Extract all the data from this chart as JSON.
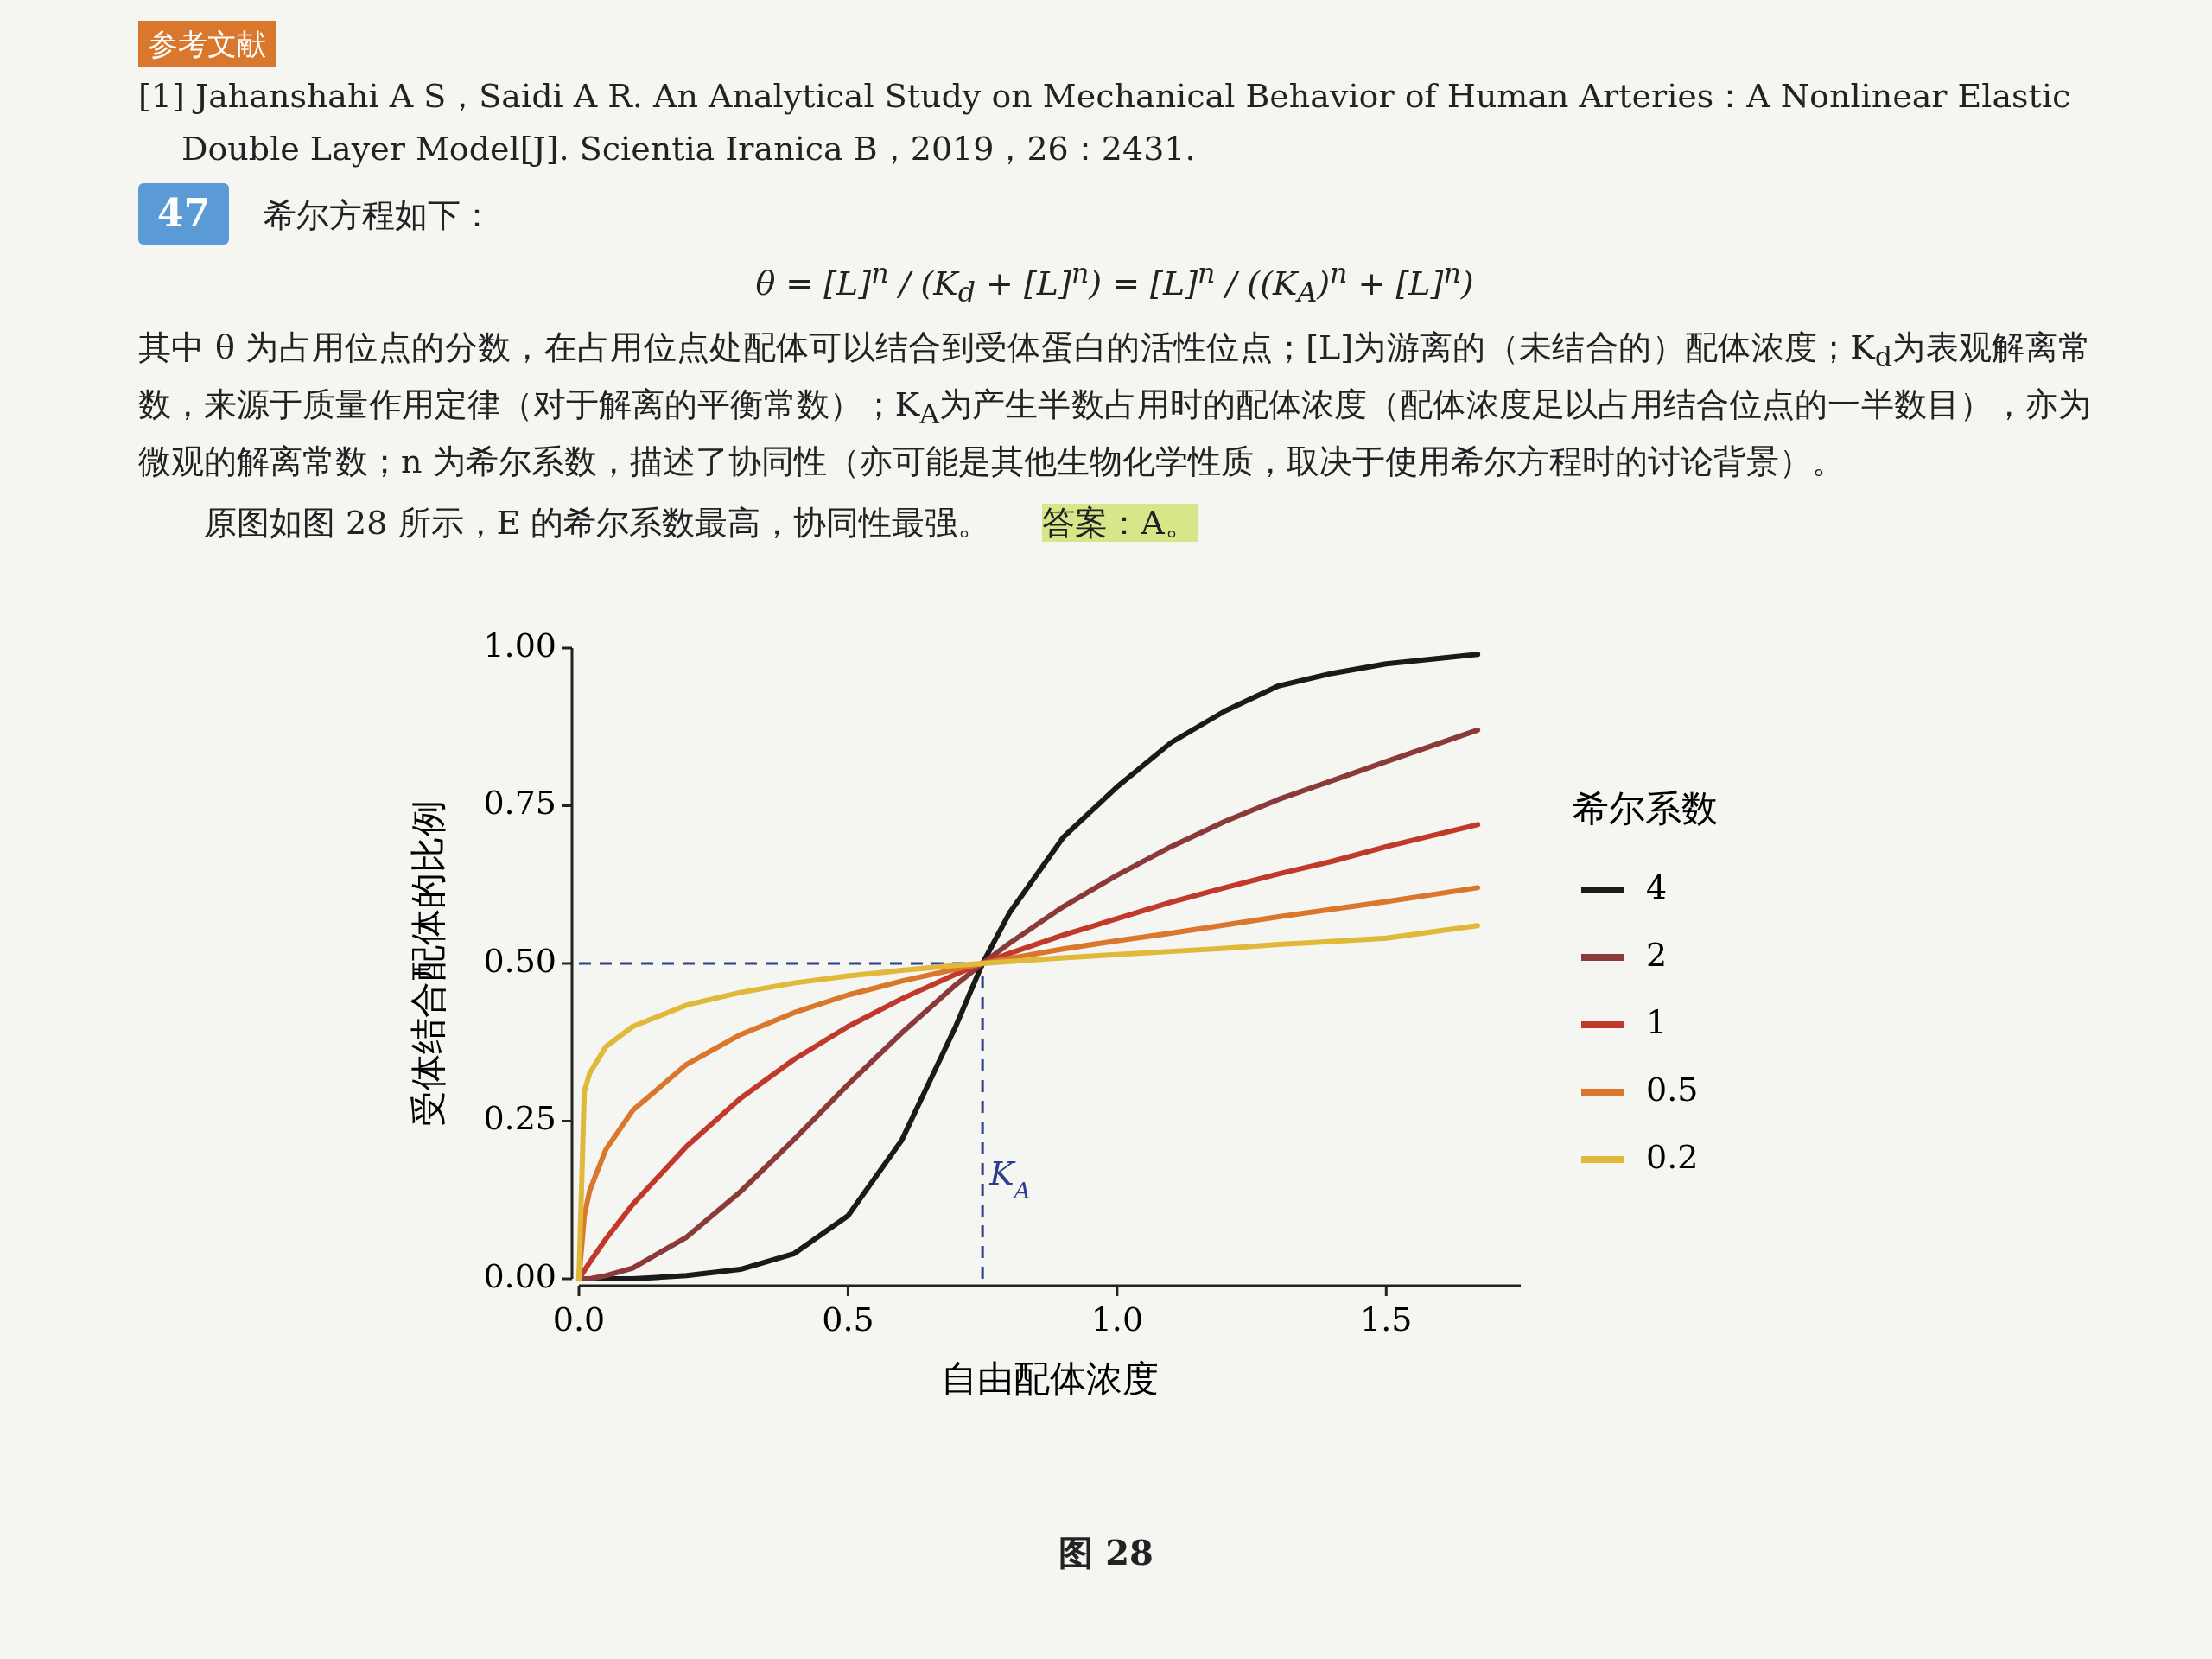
{
  "chart_data": {
    "type": "line",
    "xlabel": "自由配体浓度",
    "ylabel": "受体结合配体的比例",
    "legend_title": "希尔系数",
    "legend": "right",
    "grid": false,
    "xlim": [
      0,
      1.75
    ],
    "ylim": [
      0,
      1
    ],
    "xticks": [
      {
        "value": 0,
        "label": "0.0"
      },
      {
        "value": 0.5,
        "label": "0.5"
      },
      {
        "value": 1,
        "label": "1.0"
      },
      {
        "value": 1.5,
        "label": "1.5"
      }
    ],
    "yticks": [
      {
        "value": 0,
        "label": "0.00"
      },
      {
        "value": 0.25,
        "label": "0.25"
      },
      {
        "value": 0.5,
        "label": "0.50"
      },
      {
        "value": 0.75,
        "label": "0.75"
      },
      {
        "value": 1,
        "label": "1.00"
      }
    ],
    "x": [
      0,
      0.01,
      0.02,
      0.05,
      0.1,
      0.2,
      0.3,
      0.4,
      0.5,
      0.6,
      0.7,
      0.75,
      0.8,
      0.9,
      1.0,
      1.1,
      1.2,
      1.3,
      1.4,
      1.5,
      1.67
    ],
    "series": [
      {
        "name": "4",
        "color": "#1a1a1a",
        "values": [
          0,
          0,
          0,
          0,
          0,
          0.005,
          0.015,
          0.04,
          0.1,
          0.22,
          0.4,
          0.5,
          0.58,
          0.7,
          0.78,
          0.85,
          0.9,
          0.94,
          0.96,
          0.975,
          0.99
        ]
      },
      {
        "name": "2",
        "color": "#8b3a3a",
        "values": [
          0,
          0,
          0,
          0.005,
          0.017,
          0.066,
          0.138,
          0.221,
          0.308,
          0.39,
          0.466,
          0.5,
          0.532,
          0.59,
          0.64,
          0.685,
          0.725,
          0.76,
          0.79,
          0.82,
          0.87
        ]
      },
      {
        "name": "1",
        "color": "#c0392b",
        "values": [
          0,
          0.013,
          0.026,
          0.063,
          0.118,
          0.21,
          0.286,
          0.348,
          0.4,
          0.444,
          0.483,
          0.5,
          0.516,
          0.545,
          0.571,
          0.597,
          0.62,
          0.642,
          0.662,
          0.685,
          0.72
        ]
      },
      {
        "name": "0.5",
        "color": "#d9782d",
        "values": [
          0,
          0.1,
          0.14,
          0.205,
          0.267,
          0.34,
          0.387,
          0.422,
          0.45,
          0.472,
          0.491,
          0.5,
          0.508,
          0.523,
          0.536,
          0.548,
          0.561,
          0.574,
          0.586,
          0.598,
          0.62
        ]
      },
      {
        "name": "0.2",
        "color": "#e0b83a",
        "values": [
          0,
          0.297,
          0.326,
          0.368,
          0.4,
          0.434,
          0.454,
          0.469,
          0.48,
          0.489,
          0.497,
          0.5,
          0.503,
          0.509,
          0.514,
          0.519,
          0.524,
          0.53,
          0.535,
          0.54,
          0.56
        ]
      }
    ],
    "ref_lines": [
      {
        "axis": "x",
        "value": 0.75,
        "color": "#2c3e8c",
        "line_style": "dashed"
      },
      {
        "axis": "y",
        "value": 0.5,
        "color": "#2c3e8c",
        "line_style": "dashed"
      }
    ],
    "annotations": [
      "参考文献",
      "[1] Jahanshahi A S，Saidi A R. An Analytical Study on Mechanical Behavior of Human Arteries：A Nonlinear Elastic Double Layer Model[J]. Scientia Iranica B，2019，26：2431.",
      "47",
      "希尔方程如下：",
      "θ = [L]$^{n}$ / (K$_{d}$ + [L]$^{n}$) = [L]$^{n}$ / ((K$_{A}$)$^{n}$ + [L]$^{n}$)",
      "其中 θ 为占用位点的分数，在占用位点处配体可以结合到受体蛋白的活性位点；[L]为游离的（未结合的）配体浓度；K$_{d}$为表观解离常数，来源于质量作用定律（对于解离的平衡常数）；K$_{A}$为产生半数占用时的配体浓度（配体浓度足以占用结合位点的一半数目），亦为微观的解离常数；n 为希尔系数，描述了协同性（亦可能是其他生物化学性质，取决于使用希尔方程时的讨论背景）。",
      "原图如图 28 所示，E 的希尔系数最高，协同性最强。",
      "答案：A。",
      "图 28",
      {
        "text": "K$_{A}$",
        "x": 0.75,
        "y": 0.15
      }
    ]
  }
}
